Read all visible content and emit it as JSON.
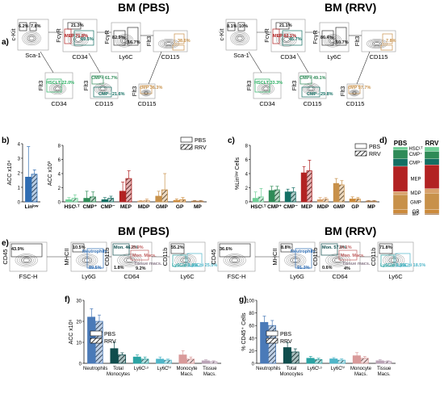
{
  "panel_letters": {
    "a": "a)",
    "b": "b)",
    "c": "c)",
    "d": "d)",
    "e": "e)",
    "f": "f)",
    "g": "g)"
  },
  "titles": {
    "bm_pbs": "BM (PBS)",
    "bm_rrv": "BM (RRV)"
  },
  "legend": {
    "pbs": "PBS",
    "rrv": "RRV"
  },
  "colors": {
    "hsc": "#6fcf97",
    "cmp_plus": "#2e8b57",
    "cmp_minus": "#136f63",
    "mep": "#b22222",
    "mdp": "#d8a16b",
    "gmp": "#c8914a",
    "gp": "#cc8a3a",
    "mp": "#a87a4d",
    "lin": "#2f6db3",
    "neutro": "#4a7ab8",
    "mono": "#0f4d4d",
    "ly6clo": "#2aa3a3",
    "ly6chi": "#4fb6c9",
    "mono_macs": "#d99a9a",
    "tissue_macs": "#bba4b7"
  },
  "a": {
    "pbs": {
      "p1": {
        "x": "Sca-1",
        "y": "c-Kit",
        "g1": "6.2%",
        "g2": "7.8%"
      },
      "p2": {
        "x": "CD34",
        "y": "FcγR",
        "g1": "21.3%",
        "g2": "MEP 71.8%",
        "g3": "69.5%"
      },
      "p3": {
        "x": "Ly6C",
        "y": "FcγR",
        "g1": "82.9%",
        "g2": "16.7%"
      },
      "p4": {
        "x": "CD115",
        "y": "Flt3",
        "g1": "38.6%",
        "g2": "GMP",
        "g3": "MDP",
        "g4": "GP"
      },
      "p5": {
        "x": "CD34",
        "y": "Flt3",
        "g1": "HSCLT 22.0%"
      },
      "p6": {
        "x": "CD115",
        "y": "Flt3",
        "g1": "CMP+ 61.7%",
        "g2": "CMP− 21.6%"
      },
      "p7": {
        "x": "CD115",
        "y": "Flt3",
        "g1": "cMP 36.3%"
      }
    },
    "rrv": {
      "p1": {
        "x": "Sca-1",
        "y": "c-Kit",
        "g1": "8.1%",
        "g2": "10%"
      },
      "p2": {
        "x": "CD34",
        "y": "FcγR",
        "g1": "21.1%",
        "g2": "MEP 62.1%",
        "g3": "45.7%"
      },
      "p3": {
        "x": "Ly6C",
        "y": "FcγR",
        "g1": "86.4%",
        "g2": "10.7%"
      },
      "p4": {
        "x": "CD115",
        "y": "Flt3",
        "g1": "7.8%",
        "g2": "GMP",
        "g3": "MDP",
        "g4": "GP"
      },
      "p5": {
        "x": "CD34",
        "y": "Flt3",
        "g1": "HSCLT 33.3%"
      },
      "p6": {
        "x": "CD115",
        "y": "Flt3",
        "g1": "CMP+ 49.1%",
        "g2": "CMP− 29.8%"
      },
      "p7": {
        "x": "CD115",
        "y": "Flt3",
        "g1": "cMP 97.7%"
      }
    }
  },
  "e": {
    "pbs": {
      "p1": {
        "x": "FSC-H",
        "y": "CD45",
        "g1": "43.9%"
      },
      "p2": {
        "x": "Ly6G",
        "y": "MHCII",
        "g1": "10.5%",
        "g2": "Neutrophils",
        "g3": "89.5%"
      },
      "p3": {
        "x": "CD64",
        "y": "CD11b",
        "g1": "Mon. 46.2%",
        "g2": "29.9%",
        "g3": "Mon. Macs.",
        "g4": "1.8%",
        "g5": "Tissue macs.",
        "g6": "9.2%"
      },
      "p4": {
        "x": "Ly6C",
        "y": "CD11b",
        "g1": "55.2%",
        "g2": "Ly6Clo 9.8%",
        "g3": "Ly6Chi 25.5%"
      }
    },
    "rrv": {
      "p1": {
        "x": "FSC-H",
        "y": "CD45",
        "g1": "36.6%"
      },
      "p2": {
        "x": "Ly6G",
        "y": "MHCII",
        "g1": "8.8%",
        "g2": "Neutrophils",
        "g3": "91.3%"
      },
      "p3": {
        "x": "CD64",
        "y": "CD11b",
        "g1": "Mon. 57.0%",
        "g2": "34.1%",
        "g3": "Mon. Macs.",
        "g4": "0.6%",
        "g5": "Tissue macs.",
        "g6": "4%"
      },
      "p4": {
        "x": "Ly6C",
        "y": "CD11b",
        "g1": "71.8%",
        "g2": "Ly6Clo 9.5%",
        "g3": "Ly6Chi 18.5%"
      }
    }
  },
  "chart_data": [
    {
      "id": "b_left",
      "type": "bar",
      "ylabel": "ACC x10⁴",
      "ylim": [
        0,
        4
      ],
      "yticks": [
        "0",
        "1",
        "2",
        "3",
        "4"
      ],
      "categories": [
        "Linˡᵒʷ"
      ],
      "series": [
        {
          "name": "PBS",
          "values": [
            1.7
          ],
          "err": [
            2.1
          ]
        },
        {
          "name": "RRV",
          "values": [
            1.9
          ],
          "err": [
            0.3
          ]
        }
      ]
    },
    {
      "id": "b_right",
      "type": "bar",
      "ylabel": "ACC x10³",
      "ylim": [
        0,
        8
      ],
      "yticks": [
        "0",
        "2",
        "4",
        "6",
        "8"
      ],
      "categories": [
        "HSCᴸᵀ",
        "CMP⁺",
        "CMP⁻",
        "MEP",
        "MDP",
        "GMP",
        "GP",
        "MP"
      ],
      "series": [
        {
          "name": "PBS",
          "values": [
            0.3,
            0.5,
            0.3,
            1.5,
            0.1,
            0.8,
            0.2,
            0.1
          ],
          "err": [
            0.3,
            1.0,
            0.3,
            1.3,
            0.1,
            0.7,
            0.2,
            0.1
          ]
        },
        {
          "name": "RRV",
          "values": [
            0.5,
            0.7,
            0.5,
            3.3,
            0.2,
            1.7,
            0.3,
            0.1
          ],
          "err": [
            0.5,
            0.7,
            0.3,
            1.1,
            0.2,
            2.3,
            0.3,
            0.1
          ]
        }
      ]
    },
    {
      "id": "c",
      "type": "bar",
      "ylabel": "%Linˡᵒʷ Cells",
      "ylim": [
        0,
        8
      ],
      "yticks": [
        "0",
        "2",
        "4",
        "6",
        "8"
      ],
      "categories": [
        "HSCᴸᵀ",
        "CMP⁺",
        "CMP⁻",
        "MEP",
        "MDP",
        "GMP",
        "GP",
        "MP"
      ],
      "series": [
        {
          "name": "PBS",
          "values": [
            0.5,
            1.6,
            1.4,
            4.1,
            0.3,
            2.6,
            0.4,
            0.1
          ],
          "err": [
            0.9,
            0.6,
            0.4,
            0.9,
            0.3,
            0.7,
            0.3,
            0.1
          ]
        },
        {
          "name": "RRV",
          "values": [
            0.7,
            1.7,
            1.4,
            4.4,
            0.4,
            2.4,
            0.4,
            0.1
          ],
          "err": [
            1.2,
            0.5,
            0.6,
            1.5,
            0.2,
            0.6,
            0.2,
            0.1
          ]
        }
      ]
    },
    {
      "id": "d",
      "type": "bar",
      "columns": [
        "PBS",
        "RRV"
      ],
      "categories": [
        "HSCᴸᵀ",
        "CMP⁺",
        "CMP⁻",
        "MEP",
        "MDP",
        "GMP",
        "GP",
        "MP"
      ],
      "series": [
        {
          "name": "PBS",
          "values": [
            4,
            12,
            10,
            34,
            4,
            20,
            5,
            2
          ]
        },
        {
          "name": "RRV",
          "values": [
            6,
            10,
            8,
            32,
            6,
            22,
            5,
            2
          ]
        }
      ]
    },
    {
      "id": "f",
      "type": "bar",
      "ylabel": "ACC x10⁶",
      "ylim": [
        0,
        30
      ],
      "yticks": [
        "0",
        "10",
        "20",
        "30"
      ],
      "categories": [
        "Neutrophils",
        "Total Monocytes",
        "Ly6Cᴸᵒ",
        "Ly6Cʰⁱ",
        "Monocyte Macs.",
        "Tissue Macs."
      ],
      "series": [
        {
          "name": "PBS",
          "values": [
            22,
            7,
            3,
            2,
            4,
            1.2
          ],
          "err": [
            4,
            3,
            1,
            1,
            2,
            0.5
          ]
        },
        {
          "name": "RRV",
          "values": [
            20,
            4,
            2,
            1.5,
            2,
            0.8
          ],
          "err": [
            3,
            1,
            1,
            0.5,
            1,
            0.4
          ]
        }
      ]
    },
    {
      "id": "g",
      "type": "bar",
      "ylabel": "% CD45⁺ Cells",
      "ylim": [
        0,
        100
      ],
      "yticks": [
        "0",
        "20",
        "40",
        "60",
        "80",
        "100"
      ],
      "categories": [
        "Neutrophils",
        "Total Monocytes",
        "Ly6Cᴸᵒ",
        "Ly6Cʰⁱ",
        "Monocyte Macs.",
        "Tissue Macs."
      ],
      "series": [
        {
          "name": "PBS",
          "values": [
            65,
            25,
            8,
            7,
            12,
            4
          ],
          "err": [
            10,
            8,
            3,
            2,
            5,
            2
          ]
        },
        {
          "name": "RRV",
          "values": [
            60,
            18,
            6,
            5,
            8,
            3
          ],
          "err": [
            8,
            5,
            2,
            2,
            3,
            1
          ]
        }
      ]
    }
  ]
}
